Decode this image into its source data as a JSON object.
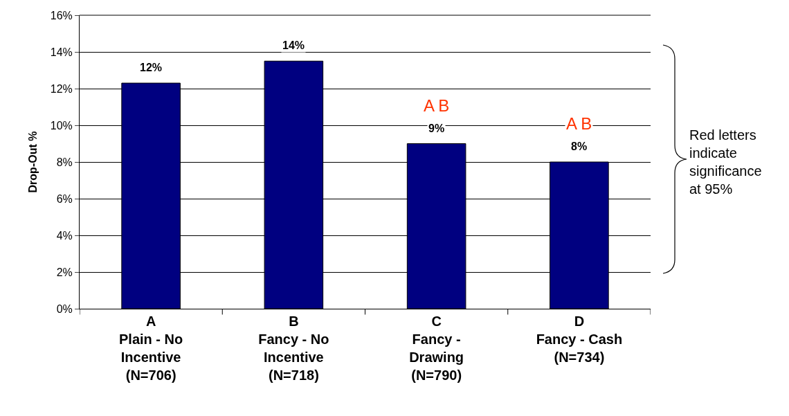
{
  "chart_data": {
    "type": "bar",
    "ylabel": "Drop-Out %",
    "categories": [
      "A\nPlain - No\nIncentive\n(N=706)",
      "B\nFancy - No\nIncentive\n(N=718)",
      "C\nFancy -\nDrawing\n(N=790)",
      "D\nFancy - Cash\n(N=734)"
    ],
    "values": [
      12.3,
      13.5,
      9.0,
      8.0
    ],
    "color": "#000080",
    "value_labels": [
      "12%",
      "14%",
      "9%",
      "8%"
    ],
    "ylim": [
      0,
      16
    ],
    "yticks": [
      {
        "value": 0,
        "label": "0%"
      },
      {
        "value": 2,
        "label": "2%"
      },
      {
        "value": 4,
        "label": "4%"
      },
      {
        "value": 6,
        "label": "6%"
      },
      {
        "value": 8,
        "label": "8%"
      },
      {
        "value": 10,
        "label": "10%"
      },
      {
        "value": 12,
        "label": "12%"
      },
      {
        "value": 14,
        "label": "14%"
      },
      {
        "value": 16,
        "label": "16%"
      }
    ],
    "grid": "y",
    "legend": false,
    "annotations": [
      {
        "text": "A B",
        "x": "C\nFancy -\nDrawing\n(N=790)",
        "y": 9.0
      },
      {
        "text": "A B",
        "x": "D\nFancy - Cash\n(N=734)",
        "y": 8.0
      },
      "Red letters\nindicate\nsignificance\nat 95%"
    ]
  }
}
